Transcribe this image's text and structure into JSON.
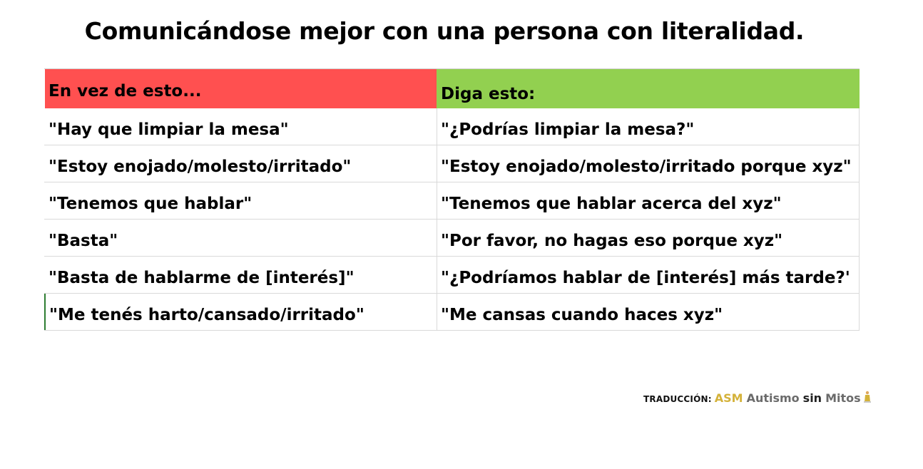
{
  "title": "Comunicándose mejor con una persona con literalidad.",
  "table": {
    "header": {
      "left": "En vez de esto...",
      "right": "Diga esto:"
    },
    "header_colors": {
      "left": "#ff5050",
      "right": "#92d050"
    },
    "rows": [
      {
        "left": "\"Hay que limpiar la mesa\"",
        "right": "\"¿Podrías limpiar la mesa?\""
      },
      {
        "left": "\"Estoy enojado/molesto/irritado\"",
        "right": "\"Estoy enojado/molesto/irritado porque xyz\""
      },
      {
        "left": "\"Tenemos que hablar\"",
        "right": "\"Tenemos que hablar acerca del xyz\""
      },
      {
        "left": "\"Basta\"",
        "right": "\"Por favor, no hagas eso porque xyz\""
      },
      {
        "left": "\"Basta de hablarme de [interés]\"",
        "right": "\"¿Podríamos hablar de [interés] más tarde?'"
      },
      {
        "left": "\"Me tenés harto/cansado/irritado\"",
        "right": "\"Me cansas cuando haces xyz\""
      }
    ]
  },
  "credit": {
    "label": "TRADUCCIÓN:",
    "brand_short": "ASM",
    "brand_word1": "Autismo",
    "brand_word2": "sin",
    "brand_word3": "Mitos",
    "logo_icon": "puzzle-figure-icon"
  }
}
